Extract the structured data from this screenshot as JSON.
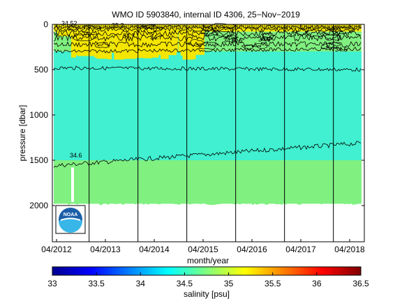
{
  "chart_data": {
    "type": "heatmap",
    "title": "WMO ID 5903840, internal ID 4306, 25−Nov−2019",
    "xlabel": "month/year",
    "ylabel": "pressure [dbar]",
    "x_ticks": [
      "04/2012",
      "04/2013",
      "04/2014",
      "04/2015",
      "04/2016",
      "04/2017",
      "04/2018"
    ],
    "y_ticks": [
      "0",
      "500",
      "1000",
      "1500",
      "2000"
    ],
    "ylim": [
      0,
      2400
    ],
    "y_reversed": true,
    "year_divider_months": [
      "12/2012",
      "12/2013",
      "12/2014",
      "12/2015",
      "12/2016",
      "12/2017"
    ],
    "colorbar": {
      "label": "salinity [psu]",
      "range": [
        33,
        36.5
      ],
      "ticks": [
        "33",
        "33.5",
        "34",
        "34.5",
        "35",
        "35.5",
        "36",
        "36.5"
      ],
      "colormap": "jet"
    },
    "salinity_layers": [
      {
        "from_dbar": 0,
        "to_dbar": 80,
        "salinity_psu": 35.3,
        "color": "#f5e600"
      },
      {
        "from_dbar": 80,
        "to_dbar": 300,
        "salinity_psu": 34.8,
        "color": "#80f080"
      },
      {
        "from_dbar": 300,
        "to_dbar": 1500,
        "salinity_psu": 34.6,
        "color": "#40f0d0"
      },
      {
        "from_dbar": 1500,
        "to_dbar": 1980,
        "salinity_psu": 34.7,
        "color": "#80f080"
      }
    ],
    "contour_labels": [
      "34.52",
      "35.2",
      "35.2",
      "34.7",
      "34.7",
      "34.6",
      "34.6",
      "34.6",
      "34.6",
      "34.6"
    ],
    "logo": "noaa-logo"
  }
}
